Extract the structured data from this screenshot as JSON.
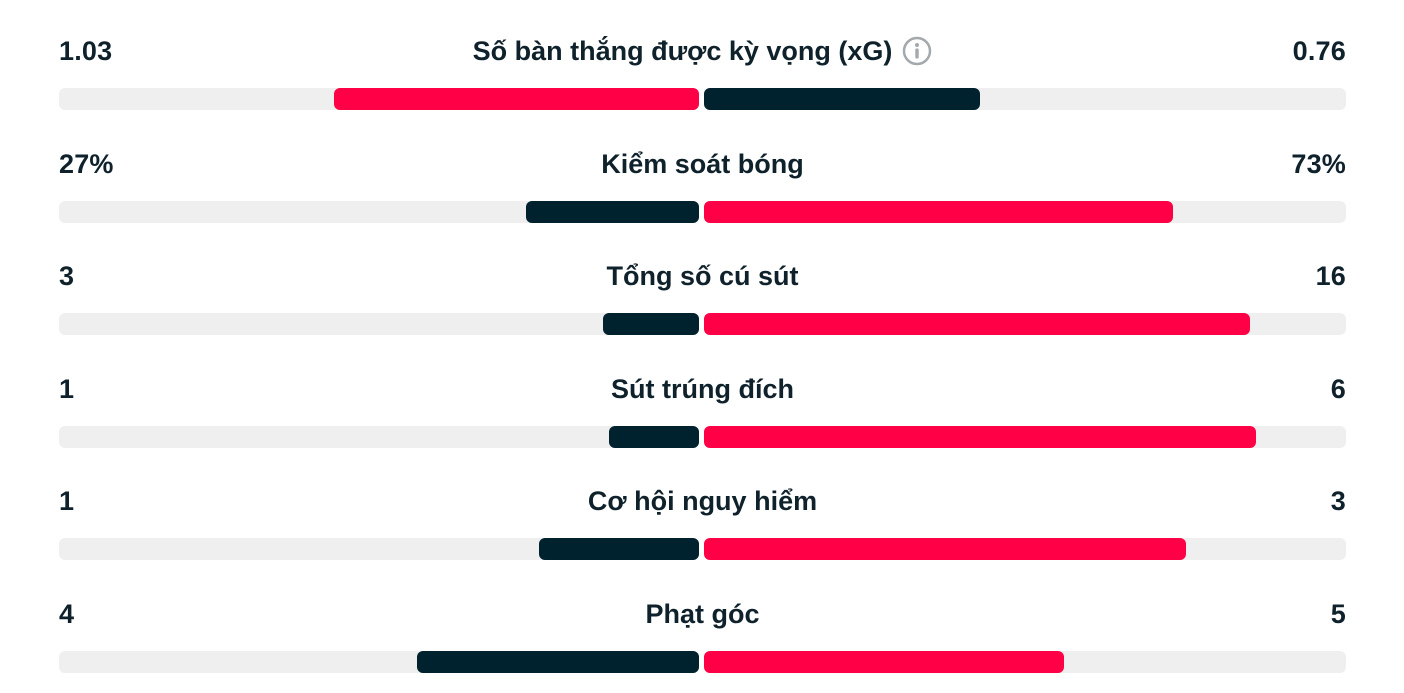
{
  "colors": {
    "red": "#ff0046",
    "dark": "#00222e",
    "track": "#efefef",
    "text": "#0f222c"
  },
  "stats": [
    {
      "label": "Số bàn thắng được kỳ vọng (xG)",
      "left_value": "1.03",
      "right_value": "0.76",
      "left_fill": 0.57,
      "right_fill": 0.43,
      "left_color": "red",
      "right_color": "dark",
      "has_info_icon": true
    },
    {
      "label": "Kiểm soát bóng",
      "left_value": "27%",
      "right_value": "73%",
      "left_fill": 0.27,
      "right_fill": 0.73,
      "left_color": "dark",
      "right_color": "red",
      "has_info_icon": false
    },
    {
      "label": "Tổng số cú sút",
      "left_value": "3",
      "right_value": "16",
      "left_fill": 0.15,
      "right_fill": 0.85,
      "left_color": "dark",
      "right_color": "red",
      "has_info_icon": false
    },
    {
      "label": "Sút trúng đích",
      "left_value": "1",
      "right_value": "6",
      "left_fill": 0.14,
      "right_fill": 0.86,
      "left_color": "dark",
      "right_color": "red",
      "has_info_icon": false
    },
    {
      "label": "Cơ hội nguy hiểm",
      "left_value": "1",
      "right_value": "3",
      "left_fill": 0.25,
      "right_fill": 0.75,
      "left_color": "dark",
      "right_color": "red",
      "has_info_icon": false
    },
    {
      "label": "Phạt góc",
      "left_value": "4",
      "right_value": "5",
      "left_fill": 0.44,
      "right_fill": 0.56,
      "left_color": "dark",
      "right_color": "red",
      "has_info_icon": false
    }
  ]
}
